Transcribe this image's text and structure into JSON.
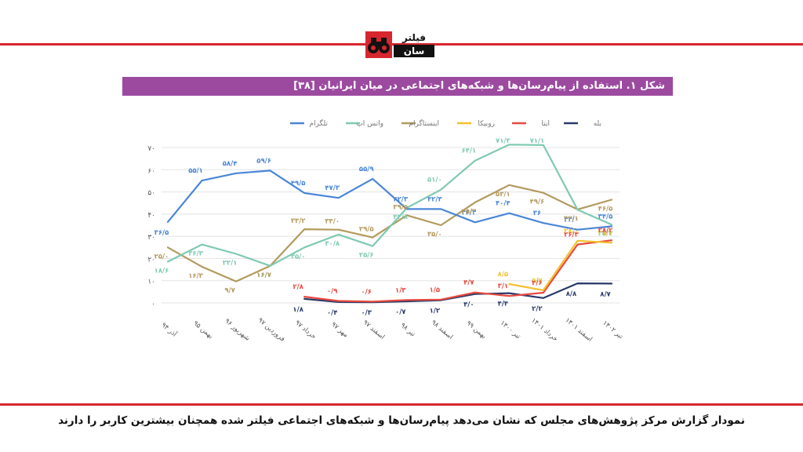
{
  "logo": {
    "line1": "فیلتر",
    "line2": "سان"
  },
  "figure_title": "شکل ۱. استفاده از پیام‌رسان‌ها و شبکه‌های اجتماعی در میان ایرانیان [۳۸]",
  "caption": "نمودار گزارش مرکز پژوهش‌های مجلس که نشان می‌دهد پیام‌رسان‌ها و شبکه‌های اجتماعی فیلتر شده همچنان بیشترین کاربر را دارند",
  "chart_data": {
    "type": "line",
    "categories": [
      "آذر ۹۴",
      "بهمن ۹۵",
      "شهریور ۹۶",
      "فروردین ۹۷",
      "خرداد ۹۷",
      "مهر ۹۷",
      "اسفند ۹۷",
      "تیر ۹۸",
      "اسفند ۹۸",
      "بهمن ۹۹",
      "تیر ۱۴۰۰",
      "خرداد ۱۴۰۱",
      "اسفند ۱۴۰۱",
      "تیر ۱۴۰۲"
    ],
    "ylim": [
      0,
      70
    ],
    "yticks": [
      "۰",
      "۱۰",
      "۲۰",
      "۳۰",
      "۴۰",
      "۵۰",
      "۶۰",
      "۷۰"
    ],
    "grid": true,
    "legend_position": "top",
    "series": [
      {
        "name": "تلگرام",
        "color": "#4a86d8",
        "values": [
          36.5,
          55.1,
          58.4,
          59.6,
          49.5,
          47.3,
          55.9,
          42.3,
          42.3,
          36.3,
          40.4,
          36.0,
          33.0,
          34.5
        ],
        "labels": [
          "۳۶/۵",
          "۵۵/۱",
          "۵۸/۴",
          "۵۹/۶",
          "۴۹/۵",
          "۴۷/۳",
          "۵۵/۹",
          "۴۲/۳",
          "۴۲/۳",
          "۳۶/۳",
          "۴۰/۴",
          "۳۶",
          "۳۳/۰",
          "۳۴/۵"
        ]
      },
      {
        "name": "واتس اپ",
        "color": "#7fc9b2",
        "values": [
          18.6,
          26.3,
          22.1,
          16.7,
          25.0,
          30.8,
          25.6,
          42.8,
          51.0,
          64.1,
          71.3,
          71.1,
          42.0,
          35.3
        ],
        "labels": [
          "۱۸/۶",
          "۲۶/۳",
          "۲۲/۱",
          "۱۶/۷",
          "۲۵/۰",
          "۳۰/۸",
          "۲۵/۶",
          "۴۲/۸",
          "۵۱/۰",
          "۶۴/۱",
          "۷۱/۳",
          "۷۱/۱",
          "۴۲/۰",
          "۳۵/۳"
        ]
      },
      {
        "name": "اینستاگرام",
        "color": "#b39a5e",
        "values": [
          25.0,
          16.3,
          9.7,
          16.7,
          33.2,
          33.0,
          29.5,
          39.5,
          35.0,
          45.3,
          53.1,
          49.6,
          42.1,
          46.5
        ],
        "labels": [
          "۲۵/۰",
          "۱۶/۳",
          "۹/۷",
          "۱۶/۷",
          "۳۳/۲",
          "۳۳/۰",
          "۲۹/۵",
          "۳۹/۵",
          "۳۵/۰",
          "۴۵/۳",
          "۵۳/۱",
          "۴۹/۶",
          "۴۲/۱",
          "۴۶/۵"
        ]
      },
      {
        "name": "روبیکا",
        "color": "#f2c12e",
        "values": [
          null,
          null,
          null,
          null,
          null,
          null,
          null,
          null,
          null,
          null,
          8.5,
          5.7,
          28.0,
          27.1
        ],
        "labels": [
          "",
          "",
          "",
          "",
          "",
          "",
          "",
          "",
          "",
          "",
          "۸/۵",
          "۵/۷",
          "۲۸/۰",
          "۲۷/۱"
        ]
      },
      {
        "name": "ایتا",
        "color": "#e8493e",
        "values": [
          null,
          null,
          null,
          null,
          2.8,
          0.9,
          0.6,
          1.3,
          1.5,
          4.7,
          3.1,
          4.6,
          26.3,
          28.2
        ],
        "labels": [
          "",
          "",
          "",
          "",
          "۲/۸",
          "۰/۹",
          "۰/۶",
          "۱/۳",
          "۱/۵",
          "۴/۷",
          "۳/۱",
          "۴/۶",
          "۲۶/۳",
          "۲۸/۲"
        ]
      },
      {
        "name": "بله",
        "color": "#2a3b6b",
        "values": [
          null,
          null,
          null,
          null,
          1.8,
          0.4,
          0.3,
          0.7,
          1.2,
          4.0,
          4.4,
          2.2,
          8.8,
          8.7
        ],
        "labels": [
          "",
          "",
          "",
          "",
          "۱/۸",
          "۰/۴",
          "۰/۳",
          "۰/۷",
          "۱/۲",
          "۴/۰",
          "۴/۴",
          "۲/۲",
          "۸/۸",
          "۸/۷"
        ]
      }
    ]
  }
}
